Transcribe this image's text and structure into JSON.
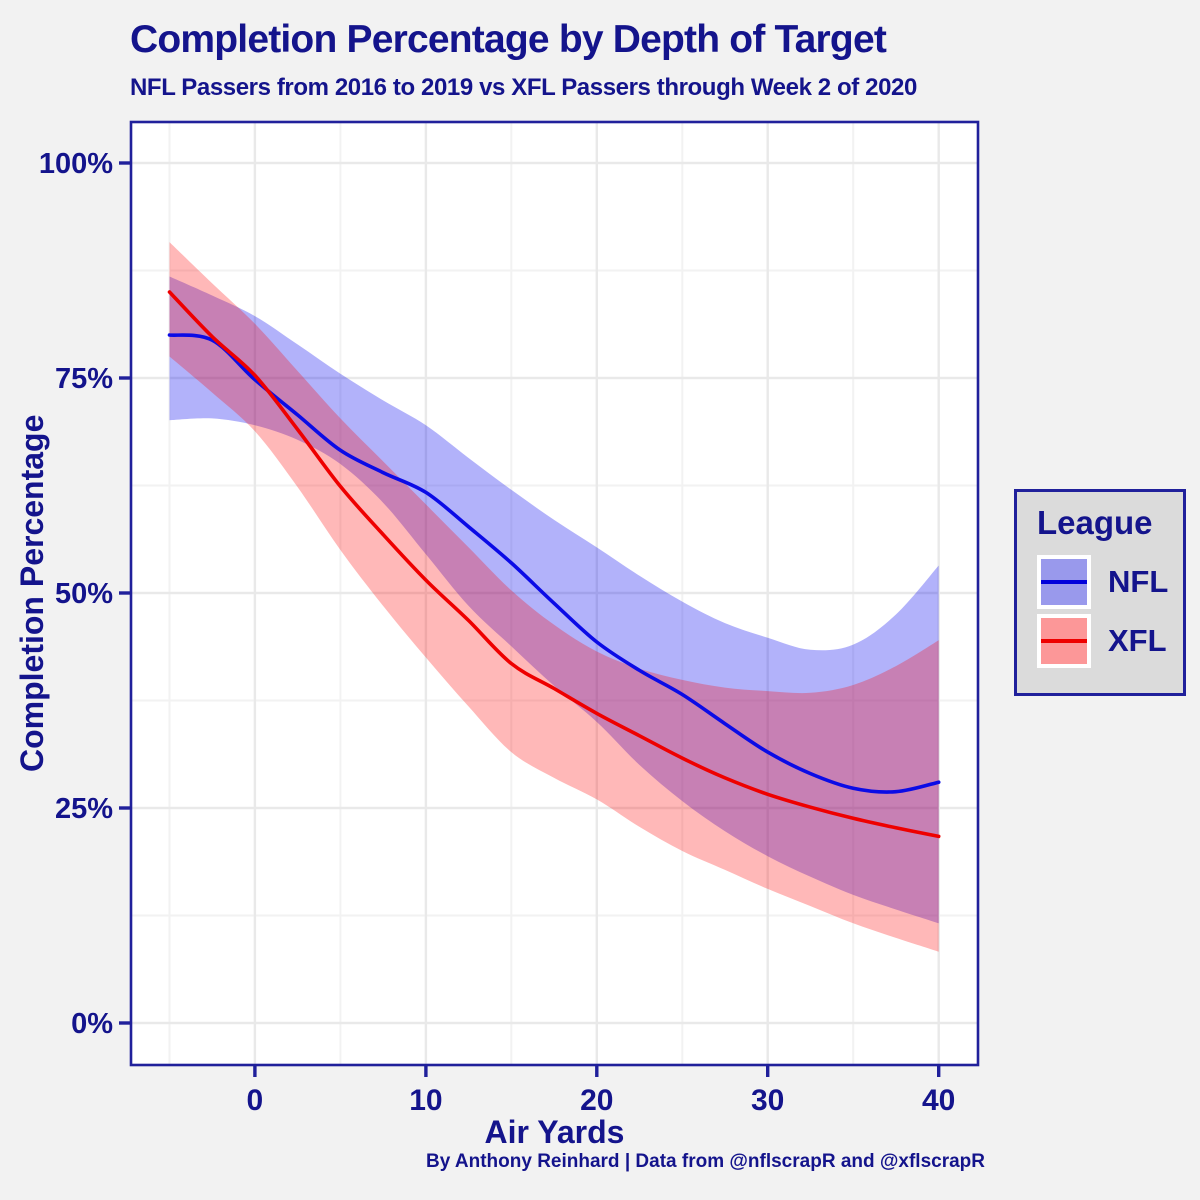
{
  "header": {
    "title": "Completion Percentage by Depth of Target",
    "subtitle": "NFL Passers from 2016 to 2019 vs XFL Passers through Week 2 of 2020"
  },
  "caption": "By Anthony Reinhard | Data from @nflscrapR and @xflscrapR",
  "legend": {
    "title": "League",
    "items": [
      {
        "label": "NFL",
        "fill": "#9999EC",
        "line": "#0000DB"
      },
      {
        "label": "XFL",
        "fill": "#FC9798",
        "line": "#EE0000"
      }
    ]
  },
  "colors": {
    "navy_text": "#14148C",
    "panel_border": "#20209B",
    "page_background": "#F2F2F2",
    "panel_background": "#FFFFFF",
    "legend_background": "#DBDBDB",
    "gridline_major": "#E9E9E9",
    "gridline_minor": "#F2F2F2",
    "tick": "#20209B"
  },
  "chart_data": {
    "type": "line",
    "title": "Completion Percentage by Depth of Target",
    "subtitle": "NFL Passers from 2016 to 2019 vs XFL Passers through Week 2 of 2020",
    "caption": "By Anthony Reinhard | Data from @nflscrapR and @xflscrapR",
    "xlabel": "Air Yards",
    "ylabel": "Completion Percentage",
    "legend_position": "right",
    "grid": true,
    "xlim": [
      -7.25,
      42.3
    ],
    "ylim_pct": [
      -4.88,
      104.77
    ],
    "x_ticks": [
      0,
      10,
      20,
      30,
      40
    ],
    "x_tick_labels": [
      "0",
      "10",
      "20",
      "30",
      "40"
    ],
    "x_minor_ticks": [
      -5,
      5,
      15,
      25,
      35
    ],
    "y_ticks_pct": [
      0,
      25,
      50,
      75,
      100
    ],
    "y_tick_labels": [
      "0%",
      "25%",
      "50%",
      "75%",
      "100%"
    ],
    "y_minor_ticks_pct": [
      12.5,
      37.5,
      62.5,
      87.5
    ],
    "x": [
      -5,
      -2.5,
      0,
      2.5,
      5,
      7.5,
      10,
      12.5,
      15,
      17.5,
      20,
      22.5,
      25,
      27.5,
      30,
      32.5,
      35,
      37.5,
      40
    ],
    "series": [
      {
        "name": "NFL",
        "line_color": "#0B0BE6",
        "band_color": "rgba(0,0,238,0.30)",
        "values": [
          80.0,
          79.4,
          74.8,
          70.7,
          66.6,
          64.0,
          61.7,
          57.7,
          53.5,
          48.8,
          44.3,
          41.0,
          38.2,
          34.8,
          31.5,
          29.0,
          27.3,
          26.9,
          28.0
        ],
        "upper": [
          86.8,
          84.6,
          82.2,
          78.9,
          75.5,
          72.4,
          69.5,
          65.7,
          62.0,
          58.5,
          55.3,
          52.0,
          49.0,
          46.5,
          44.8,
          43.4,
          44.0,
          47.5,
          53.2
        ],
        "lower": [
          70.1,
          70.3,
          69.5,
          67.8,
          65.0,
          60.5,
          54.5,
          48.5,
          43.8,
          39.2,
          35.0,
          30.0,
          25.8,
          22.3,
          19.4,
          17.0,
          14.9,
          13.2,
          11.6
        ]
      },
      {
        "name": "XFL",
        "line_color": "#EE0000",
        "band_color": "rgba(255,0,0,0.28)",
        "values": [
          85.0,
          79.8,
          75.3,
          69.0,
          62.4,
          56.8,
          51.5,
          46.8,
          41.8,
          38.9,
          36.0,
          33.4,
          30.8,
          28.5,
          26.6,
          25.1,
          23.8,
          22.7,
          21.7
        ],
        "upper": [
          90.8,
          86.0,
          81.3,
          75.8,
          70.3,
          65.3,
          60.3,
          55.3,
          50.3,
          46.3,
          43.2,
          41.2,
          39.9,
          39.0,
          38.6,
          38.4,
          39.3,
          41.5,
          44.5
        ],
        "lower": [
          77.5,
          73.3,
          68.8,
          62.3,
          55.0,
          48.5,
          42.5,
          36.8,
          31.5,
          28.5,
          26.0,
          22.8,
          20.0,
          17.8,
          15.6,
          13.6,
          11.6,
          9.9,
          8.3
        ]
      }
    ]
  }
}
